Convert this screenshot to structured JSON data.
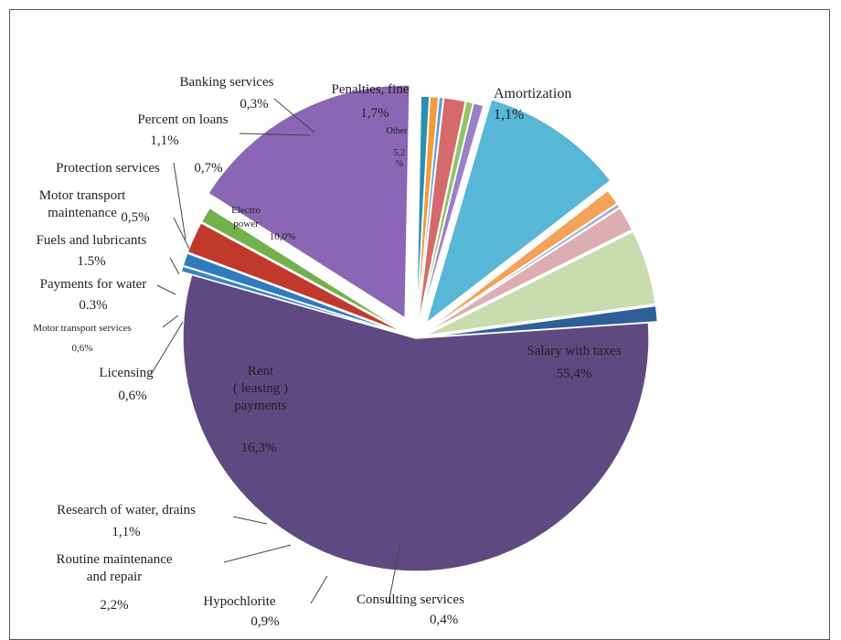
{
  "chart_data": {
    "type": "pie",
    "title": "",
    "slices": [
      {
        "name": "Amortization",
        "value_label": "1,1%",
        "value": 1.1,
        "color": "#2e5f96"
      },
      {
        "name": "Salary with taxes",
        "value_label": "55,4%",
        "value": 55.4,
        "color": "#5e4a80"
      },
      {
        "name": "Consulting services",
        "value_label": "0,4%",
        "value": 0.4,
        "color": "#3f82c4"
      },
      {
        "name": "Hypochlorite",
        "value_label": "0,9%",
        "value": 0.9,
        "color": "#2f7bbd"
      },
      {
        "name": "Routine maintenance\nand repair",
        "value_label": "2,2%",
        "value": 2.2,
        "color": "#c0392b"
      },
      {
        "name": "Research of water, drains",
        "value_label": "1,1%",
        "value": 1.1,
        "color": "#74b04b"
      },
      {
        "name": "Rent\n( leasing )\npayments",
        "value_label": "16,3%",
        "value": 16.3,
        "color": "#8a66b5"
      },
      {
        "name": "Licensing",
        "value_label": "0,6%",
        "value": 0.6,
        "color": "#2b8fb0"
      },
      {
        "name": "Motor transport services",
        "value_label": "0,6%",
        "value": 0.6,
        "color": "#f39a3b"
      },
      {
        "name": "Payments for water",
        "value_label": "0.3%",
        "value": 0.3,
        "color": "#5aa0d9"
      },
      {
        "name": "Fuels and lubricants",
        "value_label": "1.5%",
        "value": 1.5,
        "color": "#d66a6a"
      },
      {
        "name": "Motor transport\nmaintenance",
        "value_label": "0,5%",
        "value": 0.5,
        "color": "#92c36a"
      },
      {
        "name": "Protection services",
        "value_label": "0,7%",
        "value": 0.7,
        "color": "#9d7fc7"
      },
      {
        "name": "Electro\npower",
        "value_label": "10,0%",
        "value": 10.0,
        "color": "#58b6d6"
      },
      {
        "name": "Percent on loans",
        "value_label": "1,1%",
        "value": 1.1,
        "color": "#f4a259"
      },
      {
        "name": "Banking services",
        "value_label": "0,3%",
        "value": 0.3,
        "color": "#9fb7db"
      },
      {
        "name": "Penalties, fine",
        "value_label": "1,7%",
        "value": 1.7,
        "color": "#dcaeb3"
      },
      {
        "name": "Other",
        "value_label": "5,2\n%",
        "value": 5.2,
        "color": "#c8dcae"
      }
    ]
  }
}
